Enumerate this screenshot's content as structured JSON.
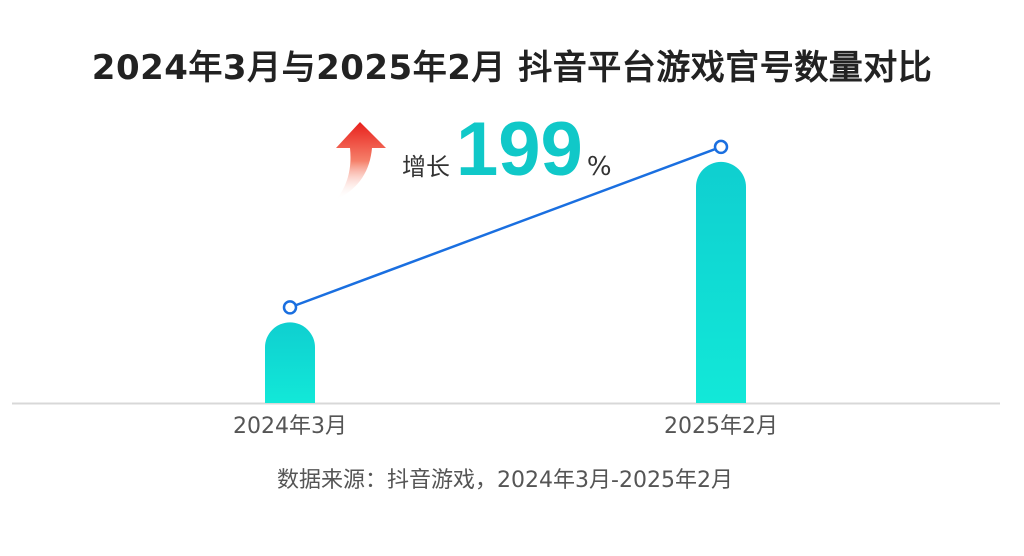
{
  "chart_data": {
    "type": "bar",
    "title": "2024年3月与2025年2月 抖音平台游戏官号数量对比",
    "categories": [
      "2024年3月",
      "2025年2月"
    ],
    "values": [
      1,
      2.99
    ],
    "ylim": [
      0,
      3.2
    ],
    "grid": false,
    "overlay_line": true,
    "annotation": {
      "label": "增长",
      "value": "199",
      "unit": "%"
    },
    "source": "数据来源：抖音游戏，2024年3月-2025年2月",
    "colors": {
      "bar_top": "#0fcfd0",
      "bar_bottom": "#12e8d8",
      "line": "#1a6fe0",
      "value_text": "#10c8c8",
      "arrow": "#e8201c"
    }
  }
}
